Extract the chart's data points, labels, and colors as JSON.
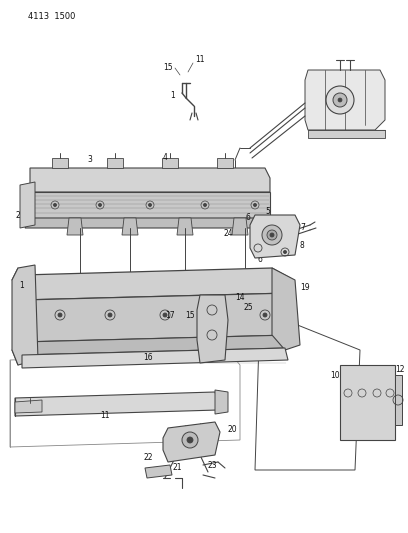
{
  "background_color": "#ffffff",
  "line_color": "#444444",
  "text_color": "#111111",
  "fig_width": 4.08,
  "fig_height": 5.33,
  "dpi": 100,
  "header": "4113  1500"
}
